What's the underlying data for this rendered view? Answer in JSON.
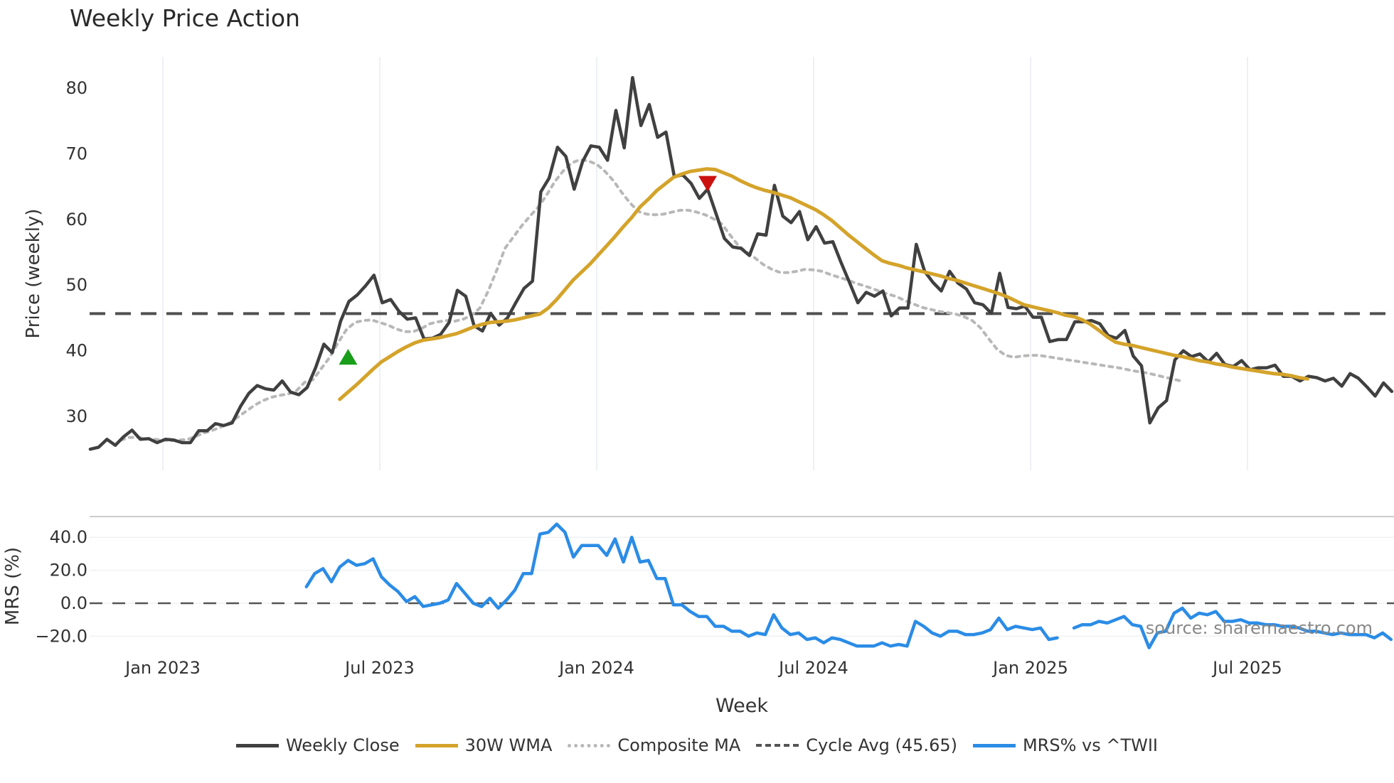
{
  "title": "Weekly Price Action",
  "source_note": "source: sharemaestro.com",
  "legend": [
    {
      "label": "Weekly Close",
      "color": "#404040",
      "style": "solid"
    },
    {
      "label": "30W WMA",
      "color": "#d4a32a",
      "style": "solid"
    },
    {
      "label": "Composite MA",
      "color": "#b8b8b8",
      "style": "dotted"
    },
    {
      "label": "Cycle Avg (45.65)",
      "color": "#555555",
      "style": "dashed"
    },
    {
      "label": "MRS% vs ^TWII",
      "color": "#2b8ce6",
      "style": "solid"
    }
  ],
  "chart_data": [
    {
      "type": "line",
      "title": "Weekly Price Action",
      "xlabel": "Week",
      "ylabel": "Price (weekly)",
      "ylim": [
        22,
        85
      ],
      "yticks": [
        30,
        40,
        50,
        60,
        70,
        80
      ],
      "xticks": [
        "Jan 2023",
        "Jul 2023",
        "Jan 2024",
        "Jul 2024",
        "Jan 2025",
        "Jul 2025"
      ],
      "grid": true,
      "x_start_week_offset": -8.7,
      "cycle_avg": 45.65,
      "markers": [
        {
          "type": "buy",
          "shape": "triangle-up",
          "color": "#1a9e1a",
          "week": 22.2,
          "price": 39.0
        },
        {
          "type": "sell",
          "shape": "triangle-down",
          "color": "#cc1111",
          "week": 65.3,
          "price": 65.5
        }
      ],
      "series": [
        {
          "name": "Weekly Close",
          "start_week": -8.7,
          "values": [
            25,
            25.3,
            26.5,
            25.6,
            26.9,
            27.9,
            26.5,
            26.6,
            26.0,
            26.5,
            26.4,
            26.0,
            26.0,
            27.8,
            27.8,
            28.9,
            28.6,
            29.0,
            31.5,
            33.5,
            34.7,
            34.2,
            34.0,
            35.4,
            33.7,
            33.3,
            34.4,
            37.4,
            41.0,
            39.7,
            44.5,
            47.5,
            48.5,
            49.9,
            51.5,
            47.3,
            47.8,
            46.0,
            44.8,
            45.0,
            41.8,
            41.9,
            42.5,
            44.3,
            49.2,
            48.3,
            43.8,
            43.0,
            45.7,
            43.9,
            45.0,
            47.3,
            49.5,
            50.6,
            64.2,
            66.3,
            71.0,
            69.6,
            64.6,
            68.8,
            71.2,
            71.0,
            69.0,
            76.6,
            70.9,
            81.6,
            74.3,
            77.5,
            72.5,
            73.3,
            66.5,
            66.8,
            65.5,
            63.2,
            64.6,
            60.9,
            57.1,
            55.8,
            55.6,
            54.5,
            57.8,
            57.6,
            65.2,
            60.5,
            59.5,
            61.2,
            56.9,
            58.9,
            56.4,
            56.6,
            53.4,
            50.4,
            47.3,
            48.9,
            48.3,
            49.1,
            45.3,
            46.5,
            46.5,
            56.2,
            52.1,
            50.4,
            49.1,
            52.1,
            50.3,
            49.4,
            47.3,
            47.0,
            45.7,
            51.8,
            46.6,
            46.4,
            46.8,
            45.1,
            45.1,
            41.4,
            41.7,
            41.7,
            44.4,
            44.4,
            44.6,
            44.1,
            42.3,
            41.9,
            43.1,
            39.2,
            37.7,
            29.0,
            31.3,
            32.4,
            38.6,
            40.0,
            39.1,
            39.5,
            38.3,
            39.6,
            37.9,
            37.6,
            38.5,
            37.1,
            37.4,
            37.4,
            37.8,
            36.1,
            36.1,
            35.4,
            36.1,
            35.9,
            35.4,
            35.8,
            34.6,
            36.5,
            35.8,
            34.5,
            33.1,
            35.1,
            33.8
          ]
        },
        {
          "name": "30W WMA",
          "start_week": 21.2,
          "values": [
            32.6,
            33.7,
            34.8,
            36.0,
            37.2,
            38.3,
            39.1,
            39.9,
            40.6,
            41.2,
            41.6,
            41.8,
            42.0,
            42.3,
            42.6,
            43.1,
            43.6,
            44.0,
            44.3,
            44.4,
            44.5,
            44.7,
            45.0,
            45.3,
            45.6,
            46.5,
            47.8,
            49.3,
            50.8,
            52.0,
            53.2,
            54.6,
            56.0,
            57.4,
            58.9,
            60.3,
            61.9,
            63.1,
            64.4,
            65.4,
            66.4,
            66.9,
            67.3,
            67.5,
            67.7,
            67.6,
            67.1,
            66.6,
            65.9,
            65.3,
            64.8,
            64.4,
            64.1,
            63.7,
            63.3,
            62.7,
            62.1,
            61.5,
            60.7,
            59.8,
            58.7,
            57.6,
            56.6,
            55.6,
            54.6,
            53.7,
            53.3,
            53.0,
            52.6,
            52.3,
            52.0,
            51.7,
            51.4,
            51.0,
            50.7,
            50.3,
            49.9,
            49.5,
            49.1,
            48.7,
            48.2,
            47.6,
            47.0,
            46.7,
            46.4,
            46.1,
            45.8,
            45.4,
            45.2,
            44.7,
            44.0,
            43.1,
            42.1,
            41.3,
            41.0,
            40.8,
            40.5,
            40.2,
            39.9,
            39.6,
            39.3,
            39.1,
            38.8,
            38.5,
            38.3,
            38.0,
            37.8,
            37.5,
            37.3,
            37.1,
            36.9,
            36.7,
            36.5,
            36.4,
            36.2,
            35.9,
            35.7
          ]
        },
        {
          "name": "Composite MA",
          "start_week": -5.0,
          "values": [
            26.4,
            26.8,
            26.8,
            26.6,
            26.5,
            26.4,
            26.3,
            26.4,
            26.5,
            27.0,
            27.5,
            27.9,
            28.4,
            29.0,
            29.9,
            30.8,
            31.7,
            32.4,
            32.9,
            33.2,
            33.4,
            33.9,
            35.2,
            35.6,
            37.3,
            39.0,
            41.2,
            43.2,
            44.3,
            44.6,
            44.7,
            44.3,
            43.9,
            43.3,
            42.9,
            42.9,
            43.4,
            44.1,
            44.4,
            44.6,
            44.5,
            44.8,
            45.4,
            46.5,
            49.1,
            52.2,
            55.6,
            57.3,
            59.0,
            60.5,
            61.9,
            63.7,
            65.8,
            67.4,
            68.6,
            69.1,
            68.9,
            68.4,
            67.3,
            65.9,
            64.1,
            62.5,
            61.2,
            60.8,
            60.7,
            60.8,
            61.1,
            61.4,
            61.4,
            61.1,
            60.7,
            60.1,
            59.3,
            57.6,
            56.0,
            55.0,
            54.1,
            53.1,
            52.4,
            51.9,
            51.9,
            52.1,
            52.4,
            52.3,
            52.1,
            51.6,
            51.2,
            50.8,
            50.3,
            49.9,
            49.5,
            49.0,
            48.6,
            48.2,
            47.6,
            47.1,
            46.6,
            46.3,
            46.0,
            45.8,
            45.6,
            45.2,
            44.6,
            43.5,
            41.8,
            40.2,
            39.3,
            39.0,
            39.2,
            39.3,
            39.3,
            39.1,
            38.9,
            38.7,
            38.5,
            38.3,
            38.1,
            37.9,
            37.7,
            37.5,
            37.3,
            37.0,
            36.8,
            36.6,
            36.3,
            36.0,
            35.7,
            35.4
          ]
        },
        {
          "name": "MRS% vs ^TWII",
          "start_week": 17.2,
          "values": [
            10,
            18,
            21,
            13,
            22,
            26,
            23,
            24,
            27,
            16,
            11,
            7,
            1,
            4,
            -2,
            -1,
            0,
            2,
            12,
            6,
            0,
            -2,
            3,
            -3,
            2,
            8,
            18,
            18,
            42,
            43,
            48,
            43,
            28,
            35,
            35,
            35,
            29,
            39,
            25,
            40,
            25,
            26,
            15,
            15,
            -1,
            -1,
            -5,
            -8,
            -8,
            -14,
            -14,
            -17,
            -17,
            -20,
            -18,
            -19,
            -7,
            -15,
            -19,
            -18,
            -22,
            -21,
            -24,
            -21,
            -22,
            -24,
            -26,
            -26,
            -26,
            -24,
            -26,
            -25,
            -26,
            -11,
            -14,
            -18,
            -20,
            -17,
            -17,
            -19,
            -19,
            -18,
            -16,
            -9,
            -16,
            -14,
            -15,
            -16,
            -15,
            -22,
            -21,
            null,
            -15,
            -13,
            -13,
            -11,
            -12,
            -10,
            -8,
            -13,
            -14,
            -27,
            -18,
            -17,
            -6,
            -3,
            -9,
            -6,
            -7,
            -5,
            -11,
            -11,
            -10,
            -12,
            -12,
            -13,
            -13,
            -14,
            -14,
            -15,
            -17,
            -17,
            -18,
            -19,
            -18,
            -19,
            -19,
            -19,
            -21,
            -18,
            -22,
            -24,
            -20,
            -23
          ]
        }
      ]
    },
    {
      "type": "line",
      "title": "",
      "ylabel": "MRS (%)",
      "ylim": [
        -28,
        50
      ],
      "yticks": [
        "40.0",
        "20.0",
        "0.0",
        "−20.0"
      ],
      "zero_line": true
    }
  ],
  "axes": {
    "xlabel": "Week",
    "price_ylabel": "Price (weekly)",
    "mrs_ylabel": "MRS (%)",
    "price_yticks": [
      "30",
      "40",
      "50",
      "60",
      "70",
      "80"
    ],
    "mrs_yticks": [
      "40.0",
      "20.0",
      "0.0",
      "−20.0"
    ],
    "xticks": [
      "Jan 2023",
      "Jul 2023",
      "Jan 2024",
      "Jul 2024",
      "Jan 2025",
      "Jul 2025"
    ]
  }
}
